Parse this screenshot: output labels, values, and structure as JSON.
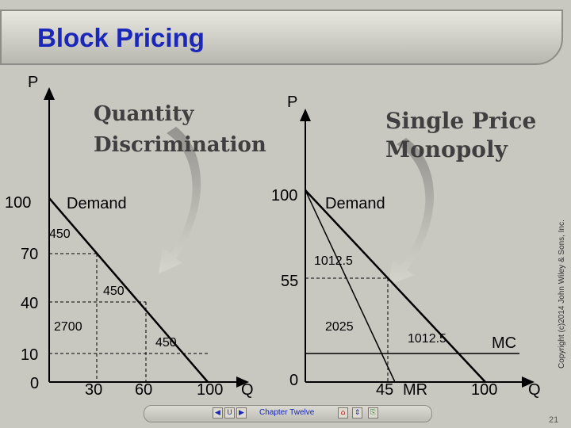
{
  "slide": {
    "title": "Block Pricing",
    "copyright": "Copyright (c)2014 John Wiley & Sons, Inc.",
    "page_number": "21",
    "chapter_label": "Chapter Twelve"
  },
  "left_panel": {
    "heading_line1": "Quantity",
    "heading_line2": "Discrimination",
    "y_axis_label": "P",
    "x_axis_label": "Q",
    "demand_label": "Demand",
    "y_ticks": [
      "100",
      "70",
      "40",
      "10",
      "0"
    ],
    "x_ticks": [
      "30",
      "60",
      "100"
    ],
    "areas": {
      "top": "450",
      "middle": "450",
      "bottom": "450",
      "consumer_base": "2700"
    }
  },
  "right_panel": {
    "heading_line1": "Single Price",
    "heading_line2": "Monopoly",
    "y_axis_label": "P",
    "x_axis_label": "Q",
    "demand_label": "Demand",
    "mr_label": "MR",
    "mc_label": "MC",
    "y_ticks": [
      "100",
      "55",
      "0"
    ],
    "x_ticks": [
      "45",
      "100"
    ],
    "areas": {
      "consumer_surplus": "1012.5",
      "producer_surplus": "2025",
      "deadweight_loss": "1012.5"
    }
  },
  "nav": {
    "buttons": [
      "◀",
      "U",
      "▶",
      "⌂",
      "⇕",
      "⎘"
    ]
  },
  "colors": {
    "background": "#c9c8c0",
    "title_blue": "#1a27b8",
    "axis": "#000000"
  }
}
